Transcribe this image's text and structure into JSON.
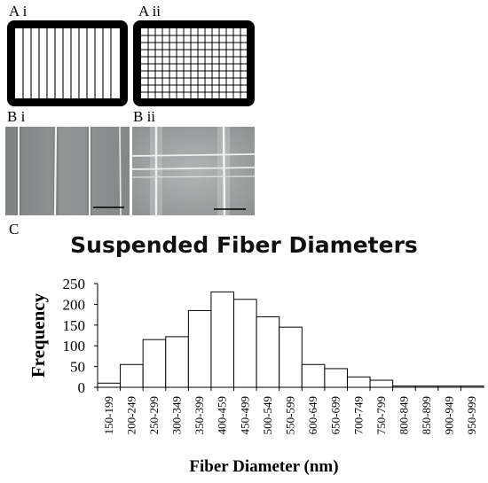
{
  "panels": {
    "a_i": "A i",
    "a_ii": "A ii",
    "b_i": "B i",
    "b_ii": "B ii",
    "c": "C"
  },
  "chart_data": {
    "type": "bar",
    "title": "Suspended Fiber Diameters",
    "xlabel": "Fiber Diameter (nm)",
    "ylabel": "Frequency",
    "ylim": [
      0,
      250
    ],
    "yticks": [
      0,
      50,
      100,
      150,
      200,
      250
    ],
    "grid": false,
    "legend": "none",
    "categories": [
      "150-199",
      "200-249",
      "250-299",
      "300-349",
      "350-399",
      "400-459",
      "450-499",
      "500-549",
      "550-599",
      "600-649",
      "650-699",
      "700-749",
      "750-799",
      "800-849",
      "850-899",
      "900-949",
      "950-999"
    ],
    "values": [
      10,
      55,
      115,
      122,
      185,
      230,
      212,
      170,
      145,
      55,
      45,
      25,
      17,
      3,
      3,
      3,
      3
    ],
    "bar_fill": "#ffffff",
    "bar_stroke": "#000000"
  }
}
